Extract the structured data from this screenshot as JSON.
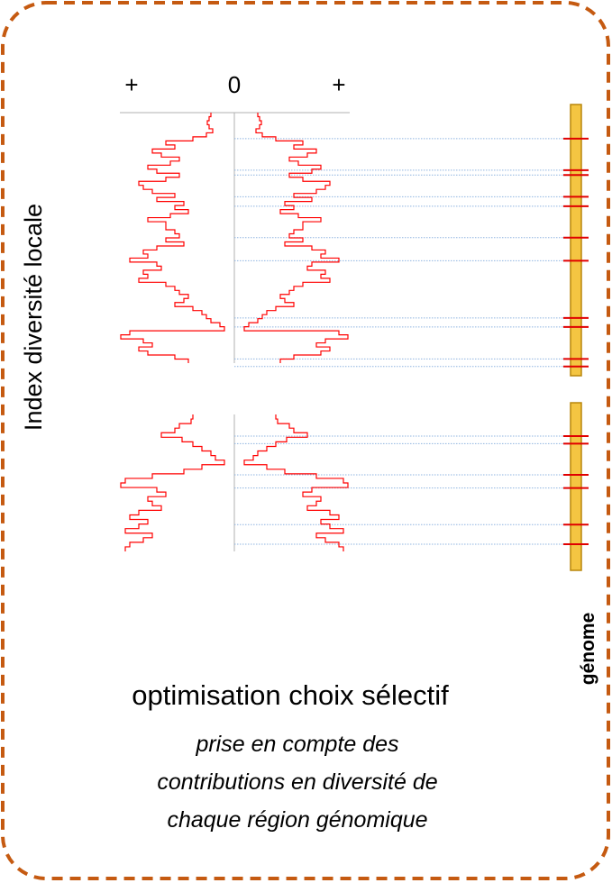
{
  "axis": {
    "left_sign": "+",
    "zero": "0",
    "right_sign": "+"
  },
  "y_axis_label": "Index diversité locale",
  "genome_label": "génome",
  "caption": {
    "title": "optimisation choix sélectif",
    "lines": [
      "prise en compte des",
      "contributions en diversité de",
      "chaque région génomique"
    ]
  },
  "colors": {
    "frame": "#C55A11",
    "profile": "#FF0000",
    "genome_bar_fill": "#F4C542",
    "genome_bar_stroke": "#B8860B",
    "marker": "#E00000",
    "guide": "#8FB4E0",
    "axis": "#B0B0B0"
  },
  "blocks": [
    {
      "name": "chromosome-1",
      "profile_half_widths": [
        20,
        22,
        24,
        22,
        18,
        25,
        40,
        70,
        60,
        85,
        75,
        55,
        65,
        90,
        80,
        55,
        70,
        100,
        95,
        85,
        60,
        80,
        50,
        60,
        45,
        65,
        90,
        70,
        70,
        60,
        55,
        70,
        50,
        80,
        95,
        90,
        110,
        80,
        75,
        95,
        90,
        100,
        70,
        60,
        55,
        45,
        50,
        60,
        40,
        30,
        25,
        20,
        10,
        5,
        110,
        120,
        95,
        85,
        100,
        90,
        60,
        45
      ],
      "markers": [
        0.126,
        0.242,
        0.26,
        0.34,
        0.375,
        0.491,
        0.576,
        0.787,
        0.82,
        0.938,
        0.966
      ]
    },
    {
      "name": "chromosome-2",
      "profile_half_widths": [
        40,
        42,
        55,
        60,
        75,
        52,
        40,
        30,
        20,
        15,
        5,
        30,
        50,
        85,
        115,
        120,
        80,
        70,
        90,
        85,
        75,
        100,
        110,
        90,
        100,
        115,
        85,
        95,
        110,
        115
      ],
      "markers": [
        0.199,
        0.244,
        0.43,
        0.509,
        0.727,
        0.844
      ]
    }
  ]
}
